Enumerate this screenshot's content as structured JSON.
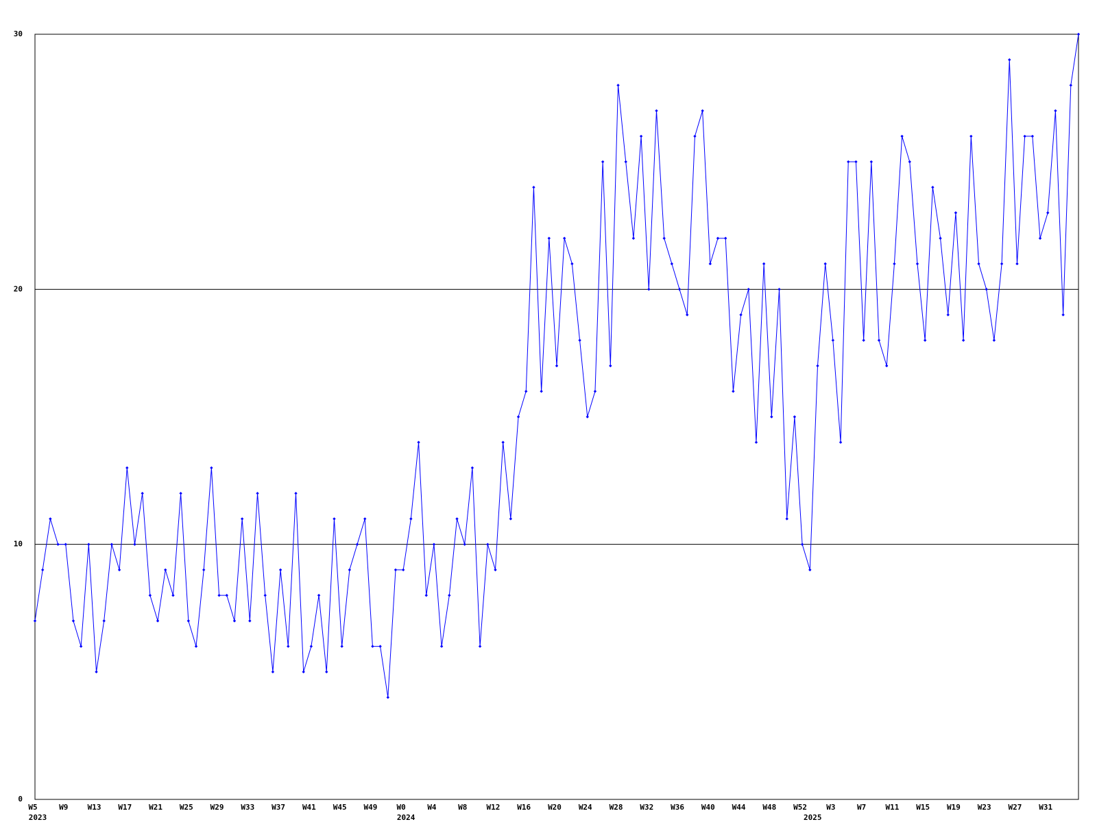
{
  "chart_data": {
    "type": "line",
    "categories": [
      "W5",
      null,
      null,
      null,
      "W9",
      null,
      null,
      null,
      "W13",
      null,
      null,
      null,
      "W17",
      null,
      null,
      null,
      "W21",
      null,
      null,
      null,
      "W25",
      null,
      null,
      null,
      "W29",
      null,
      null,
      null,
      "W33",
      null,
      null,
      null,
      "W37",
      null,
      null,
      null,
      "W41",
      null,
      null,
      null,
      "W45",
      null,
      null,
      null,
      "W49",
      null,
      null,
      null,
      "W0",
      null,
      null,
      null,
      "W4",
      null,
      null,
      null,
      "W8",
      null,
      null,
      null,
      "W12",
      null,
      null,
      null,
      "W16",
      null,
      null,
      null,
      "W20",
      null,
      null,
      null,
      "W24",
      null,
      null,
      null,
      "W28",
      null,
      null,
      null,
      "W32",
      null,
      null,
      null,
      "W36",
      null,
      null,
      null,
      "W40",
      null,
      null,
      null,
      "W44",
      null,
      null,
      null,
      "W48",
      null,
      null,
      null,
      "W52",
      null,
      null,
      null,
      "W3",
      null,
      null,
      null,
      "W7",
      null,
      null,
      null,
      "W11",
      null,
      null,
      null,
      "W15",
      null,
      null,
      null,
      "W19",
      null,
      null,
      null,
      "W23",
      null,
      null,
      null,
      "W27",
      null,
      null,
      null,
      "W31",
      null,
      null,
      null,
      null
    ],
    "years": [
      "2023",
      null,
      null,
      null,
      null,
      null,
      null,
      null,
      null,
      null,
      null,
      null,
      null,
      null,
      null,
      null,
      null,
      null,
      null,
      null,
      null,
      null,
      null,
      null,
      null,
      null,
      null,
      null,
      null,
      null,
      null,
      null,
      null,
      null,
      null,
      null,
      null,
      null,
      null,
      null,
      null,
      null,
      null,
      null,
      null,
      null,
      null,
      null,
      "2024",
      null,
      null,
      null,
      null,
      null,
      null,
      null,
      null,
      null,
      null,
      null,
      null,
      null,
      null,
      null,
      null,
      null,
      null,
      null,
      null,
      null,
      null,
      null,
      null,
      null,
      null,
      null,
      null,
      null,
      null,
      null,
      null,
      null,
      null,
      null,
      null,
      null,
      null,
      null,
      null,
      null,
      null,
      null,
      null,
      null,
      null,
      null,
      null,
      null,
      null,
      null,
      null,
      "2025",
      null,
      null,
      null,
      null,
      null,
      null,
      null,
      null,
      null,
      null,
      null,
      null,
      null,
      null,
      null,
      null,
      null,
      null,
      null,
      null,
      null,
      null,
      null,
      null,
      null,
      null,
      null,
      null,
      null,
      null,
      null,
      null,
      null,
      null,
      null
    ],
    "series": [
      {
        "color": "#0000ff",
        "values": [
          7,
          9,
          11,
          10,
          10,
          7,
          6,
          10,
          5,
          7,
          10,
          9,
          13,
          10,
          12,
          8,
          7,
          9,
          8,
          12,
          7,
          6,
          9,
          13,
          8,
          8,
          7,
          11,
          7,
          12,
          8,
          5,
          9,
          6,
          12,
          5,
          6,
          8,
          5,
          11,
          6,
          9,
          10,
          11,
          6,
          6,
          4,
          9,
          9,
          11,
          14,
          8,
          10,
          6,
          8,
          11,
          10,
          13,
          6,
          10,
          9,
          14,
          11,
          15,
          16,
          24,
          16,
          22,
          17,
          22,
          21,
          18,
          15,
          16,
          25,
          17,
          28,
          25,
          22,
          26,
          20,
          27,
          22,
          21,
          20,
          19,
          26,
          27,
          21,
          22,
          22,
          16,
          19,
          20,
          14,
          21,
          15,
          20,
          11,
          15,
          10,
          9,
          17,
          21,
          18,
          14,
          25,
          25,
          18,
          25,
          18,
          17,
          21,
          26,
          25,
          21,
          18,
          24,
          22,
          19,
          23,
          18,
          26,
          21,
          20,
          18,
          21,
          29,
          21,
          26,
          26,
          22,
          23,
          27,
          19,
          28,
          30
        ]
      }
    ],
    "ylim": [
      0,
      30
    ],
    "yticks": [
      0,
      10,
      20,
      30
    ],
    "grid": true
  }
}
